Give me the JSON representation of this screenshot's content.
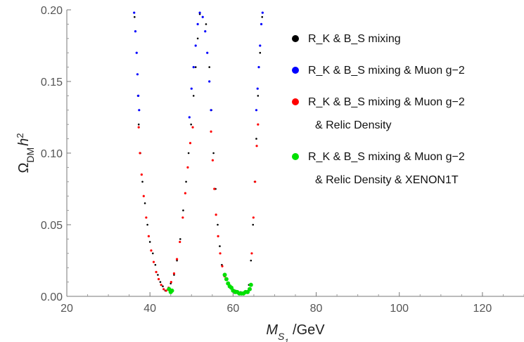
{
  "chart_data": {
    "type": "scatter",
    "title": "",
    "xlabel": "M_S1 / GeV",
    "ylabel": "Ω_DM h^2",
    "xlim": [
      20,
      130
    ],
    "ylim": [
      0,
      0.2
    ],
    "x_ticks": [
      "20",
      "40",
      "60",
      "80",
      "100",
      "120"
    ],
    "y_ticks": [
      "0.00",
      "0.05",
      "0.10",
      "0.15",
      "0.20"
    ],
    "grid": false,
    "legend_position": "top-right",
    "series": [
      {
        "name": "R_K & B_S mixing",
        "legend_lines": [
          "R_K & B_S mixing"
        ],
        "color": "#000000",
        "marker": "dot",
        "points": [
          [
            36.3,
            0.195
          ],
          [
            36.8,
            0.17
          ],
          [
            37.1,
            0.14
          ],
          [
            37.3,
            0.12
          ],
          [
            37.7,
            0.1
          ],
          [
            38.2,
            0.08
          ],
          [
            38.8,
            0.065
          ],
          [
            39.4,
            0.05
          ],
          [
            40.0,
            0.038
          ],
          [
            40.7,
            0.03
          ],
          [
            41.3,
            0.022
          ],
          [
            41.9,
            0.015
          ],
          [
            42.5,
            0.01
          ],
          [
            43.1,
            0.007
          ],
          [
            43.7,
            0.004
          ],
          [
            44.3,
            0.005
          ],
          [
            45.0,
            0.009
          ],
          [
            45.8,
            0.015
          ],
          [
            46.5,
            0.025
          ],
          [
            47.3,
            0.04
          ],
          [
            48.0,
            0.06
          ],
          [
            48.7,
            0.08
          ],
          [
            49.3,
            0.1
          ],
          [
            49.9,
            0.12
          ],
          [
            50.5,
            0.14
          ],
          [
            51.0,
            0.16
          ],
          [
            51.5,
            0.18
          ],
          [
            52.0,
            0.197
          ],
          [
            53.5,
            0.19
          ],
          [
            54.3,
            0.16
          ],
          [
            54.8,
            0.13
          ],
          [
            55.3,
            0.1
          ],
          [
            55.8,
            0.075
          ],
          [
            56.3,
            0.05
          ],
          [
            56.8,
            0.035
          ],
          [
            57.3,
            0.022
          ],
          [
            57.9,
            0.014
          ],
          [
            58.6,
            0.009
          ],
          [
            59.5,
            0.006
          ],
          [
            60.6,
            0.004
          ],
          [
            61.8,
            0.003
          ],
          [
            63.0,
            0.003
          ],
          [
            63.8,
            0.008
          ],
          [
            64.3,
            0.025
          ],
          [
            64.8,
            0.05
          ],
          [
            65.2,
            0.08
          ],
          [
            65.6,
            0.11
          ],
          [
            66.0,
            0.14
          ],
          [
            66.5,
            0.17
          ],
          [
            67.0,
            0.195
          ]
        ]
      },
      {
        "name": "R_K & B_S mixing & Muon g-2",
        "legend_lines": [
          "R_K & B_S mixing & Muon g−2"
        ],
        "color": "#0000ff",
        "marker": "dot",
        "points": [
          [
            36.2,
            0.198
          ],
          [
            36.5,
            0.185
          ],
          [
            36.8,
            0.17
          ],
          [
            37.0,
            0.155
          ],
          [
            37.2,
            0.14
          ],
          [
            37.4,
            0.13
          ],
          [
            49.5,
            0.125
          ],
          [
            50.0,
            0.145
          ],
          [
            50.5,
            0.16
          ],
          [
            51.0,
            0.175
          ],
          [
            51.5,
            0.19
          ],
          [
            52.0,
            0.198
          ],
          [
            52.7,
            0.195
          ],
          [
            53.3,
            0.185
          ],
          [
            53.8,
            0.17
          ],
          [
            54.3,
            0.15
          ],
          [
            54.7,
            0.13
          ],
          [
            65.6,
            0.13
          ],
          [
            65.9,
            0.145
          ],
          [
            66.2,
            0.16
          ],
          [
            66.5,
            0.175
          ],
          [
            66.8,
            0.19
          ],
          [
            67.1,
            0.198
          ]
        ]
      },
      {
        "name": "R_K & B_S mixing & Muon g-2 & Relic Density",
        "legend_lines": [
          "R_K & B_S mixing & Muon g−2",
          "& Relic Density"
        ],
        "color": "#ff0000",
        "marker": "dot",
        "points": [
          [
            37.3,
            0.118
          ],
          [
            37.6,
            0.1
          ],
          [
            38.0,
            0.085
          ],
          [
            38.5,
            0.07
          ],
          [
            39.1,
            0.055
          ],
          [
            39.7,
            0.042
          ],
          [
            40.3,
            0.032
          ],
          [
            40.9,
            0.024
          ],
          [
            41.5,
            0.017
          ],
          [
            42.1,
            0.012
          ],
          [
            42.7,
            0.008
          ],
          [
            43.3,
            0.005
          ],
          [
            43.9,
            0.004
          ],
          [
            44.5,
            0.006
          ],
          [
            45.1,
            0.01
          ],
          [
            45.8,
            0.016
          ],
          [
            46.5,
            0.026
          ],
          [
            47.2,
            0.038
          ],
          [
            47.9,
            0.055
          ],
          [
            48.5,
            0.072
          ],
          [
            49.1,
            0.09
          ],
          [
            49.7,
            0.107
          ],
          [
            50.3,
            0.118
          ],
          [
            54.7,
            0.115
          ],
          [
            55.1,
            0.095
          ],
          [
            55.5,
            0.075
          ],
          [
            55.9,
            0.057
          ],
          [
            56.4,
            0.042
          ],
          [
            56.9,
            0.03
          ],
          [
            57.4,
            0.021
          ],
          [
            58.0,
            0.014
          ],
          [
            58.7,
            0.009
          ],
          [
            59.4,
            0.006
          ],
          [
            64.5,
            0.03
          ],
          [
            64.9,
            0.055
          ],
          [
            65.3,
            0.08
          ],
          [
            65.7,
            0.105
          ],
          [
            66.0,
            0.12
          ]
        ]
      },
      {
        "name": "R_K & B_S mixing & Muon g-2 & Relic Density & XENON1T",
        "legend_lines": [
          "R_K & B_S mixing & Muon g−2",
          "& Relic Density & XENON1T"
        ],
        "color": "#00e000",
        "marker": "dot",
        "points": [
          [
            44.6,
            0.005
          ],
          [
            45.0,
            0.003
          ],
          [
            45.3,
            0.004
          ],
          [
            58.0,
            0.015
          ],
          [
            58.4,
            0.012
          ],
          [
            58.8,
            0.009
          ],
          [
            59.2,
            0.007
          ],
          [
            59.6,
            0.006
          ],
          [
            60.0,
            0.004
          ],
          [
            60.5,
            0.003
          ],
          [
            61.0,
            0.003
          ],
          [
            61.5,
            0.002
          ],
          [
            62.0,
            0.002
          ],
          [
            62.5,
            0.002
          ],
          [
            63.0,
            0.003
          ],
          [
            63.5,
            0.003
          ],
          [
            64.0,
            0.005
          ],
          [
            64.3,
            0.008
          ]
        ]
      }
    ]
  }
}
